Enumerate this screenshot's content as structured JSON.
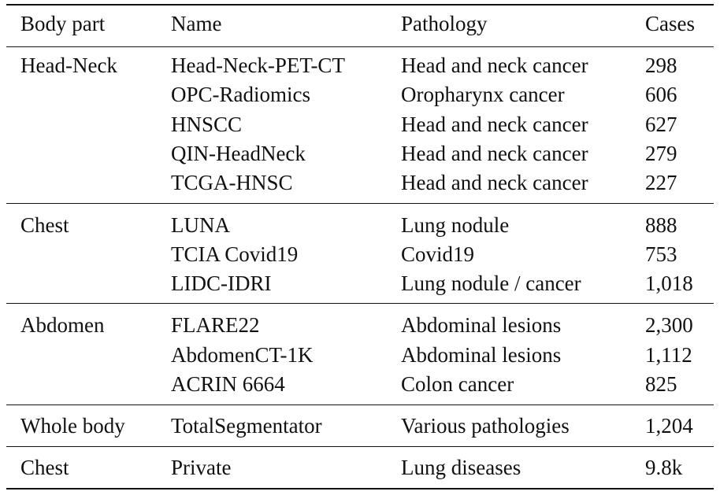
{
  "headers": {
    "body_part": "Body part",
    "name": "Name",
    "pathology": "Pathology",
    "cases": "Cases"
  },
  "groups": [
    {
      "body_part": "Head-Neck",
      "rows": [
        {
          "name": "Head-Neck-PET-CT",
          "pathology": "Head and neck cancer",
          "cases": "298"
        },
        {
          "name": "OPC-Radiomics",
          "pathology": "Oropharynx cancer",
          "cases": "606"
        },
        {
          "name": "HNSCC",
          "pathology": "Head and neck cancer",
          "cases": "627"
        },
        {
          "name": "QIN-HeadNeck",
          "pathology": "Head and neck cancer",
          "cases": "279"
        },
        {
          "name": "TCGA-HNSC",
          "pathology": "Head and neck cancer",
          "cases": "227"
        }
      ]
    },
    {
      "body_part": "Chest",
      "rows": [
        {
          "name": "LUNA",
          "pathology": "Lung nodule",
          "cases": "888"
        },
        {
          "name": "TCIA Covid19",
          "pathology": "Covid19",
          "cases": "753"
        },
        {
          "name": "LIDC-IDRI",
          "pathology": "Lung nodule / cancer",
          "cases": "1,018"
        }
      ]
    },
    {
      "body_part": "Abdomen",
      "rows": [
        {
          "name": "FLARE22",
          "pathology": "Abdominal lesions",
          "cases": "2,300"
        },
        {
          "name": "AbdomenCT-1K",
          "pathology": "Abdominal lesions",
          "cases": "1,112"
        },
        {
          "name": "ACRIN 6664",
          "pathology": "Colon cancer",
          "cases": "825"
        }
      ]
    },
    {
      "body_part": "Whole body",
      "rows": [
        {
          "name": "TotalSegmentator",
          "pathology": "Various pathologies",
          "cases": "1,204"
        }
      ]
    },
    {
      "body_part": "Chest",
      "rows": [
        {
          "name": "Private",
          "pathology": "Lung diseases",
          "cases": "9.8k"
        }
      ]
    }
  ]
}
